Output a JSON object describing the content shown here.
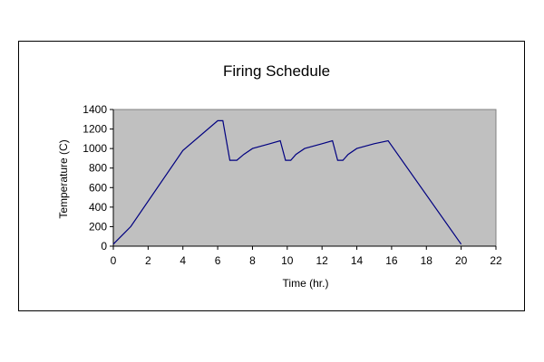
{
  "chart_data": {
    "type": "line",
    "title": "Firing Schedule",
    "xlabel": "Time (hr.)",
    "ylabel": "Temperature (C)",
    "xlim": [
      0,
      22
    ],
    "ylim": [
      0,
      1400
    ],
    "xticks": [
      0,
      2,
      4,
      6,
      8,
      10,
      12,
      14,
      16,
      18,
      20,
      22
    ],
    "yticks": [
      0,
      200,
      400,
      600,
      800,
      1000,
      1200,
      1400
    ],
    "grid": false,
    "legend": "none",
    "colors": {
      "plot_area": "#c0c0c0",
      "line": "#000080",
      "axis": "#000000"
    },
    "series": [
      {
        "x": [
          0,
          1,
          4,
          6,
          6.3,
          6.7,
          7.1,
          7.5,
          8,
          9,
          9.6,
          9.9,
          10.2,
          10.5,
          11,
          12,
          12.6,
          12.9,
          13.2,
          13.5,
          14,
          15,
          15.8,
          20
        ],
        "y": [
          20,
          200,
          980,
          1285,
          1285,
          880,
          880,
          940,
          1000,
          1050,
          1080,
          880,
          880,
          940,
          1000,
          1050,
          1080,
          880,
          880,
          940,
          1000,
          1050,
          1080,
          20
        ]
      }
    ]
  }
}
